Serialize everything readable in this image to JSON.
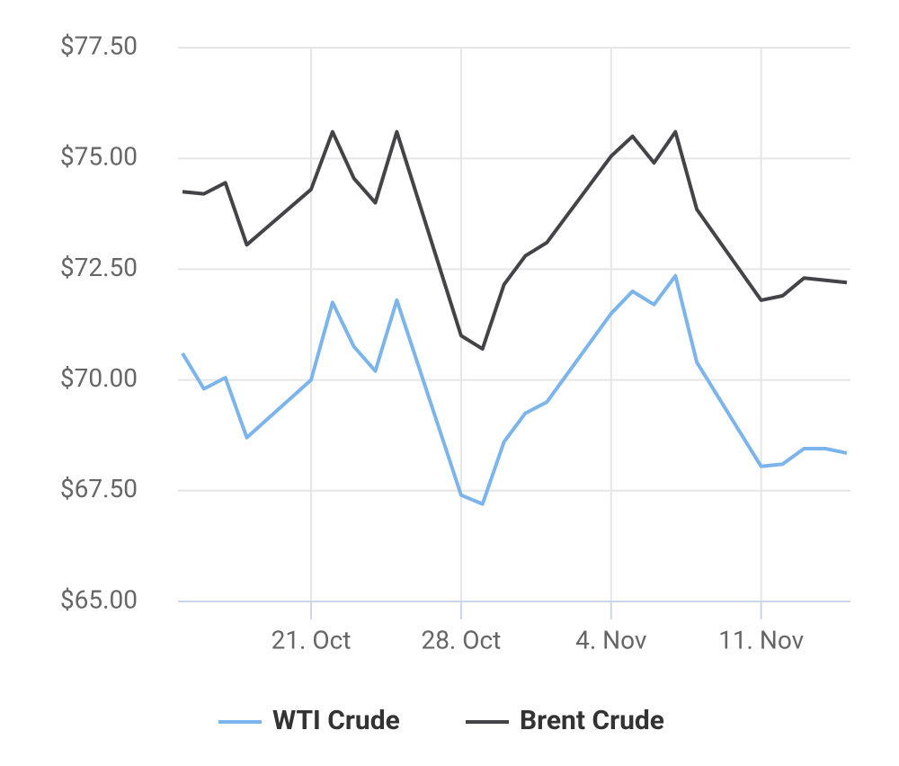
{
  "chart_data": {
    "type": "line",
    "x": [
      "10-15",
      "10-16",
      "10-17",
      "10-18",
      "10-21",
      "10-22",
      "10-23",
      "10-24",
      "10-25",
      "10-28",
      "10-29",
      "10-30",
      "10-31",
      "11-01",
      "11-04",
      "11-05",
      "11-06",
      "11-07",
      "11-08",
      "11-11",
      "11-12",
      "11-13",
      "11-14",
      "11-15"
    ],
    "series": [
      {
        "name": "WTI Crude",
        "color": "#7cb5ec",
        "values": [
          70.6,
          69.8,
          70.05,
          68.7,
          70.0,
          71.75,
          70.75,
          70.2,
          71.8,
          67.4,
          67.2,
          68.6,
          69.25,
          69.5,
          71.5,
          72.0,
          71.7,
          72.35,
          70.4,
          68.05,
          68.1,
          68.45,
          68.45,
          68.35
        ]
      },
      {
        "name": "Brent Crude",
        "color": "#434348",
        "values": [
          74.25,
          74.2,
          74.45,
          73.05,
          74.3,
          75.6,
          74.55,
          74.0,
          75.6,
          71.0,
          70.7,
          72.15,
          72.8,
          73.1,
          75.05,
          75.5,
          74.9,
          75.6,
          73.85,
          71.8,
          71.9,
          72.3,
          72.25,
          72.2
        ]
      }
    ],
    "xlim": [
      "10-15",
      "11-15"
    ],
    "xticks": [
      {
        "value": "10-21",
        "label": "21. Oct"
      },
      {
        "value": "10-28",
        "label": "28. Oct"
      },
      {
        "value": "11-04",
        "label": "4. Nov"
      },
      {
        "value": "11-11",
        "label": "11. Nov"
      }
    ],
    "ylim": [
      65,
      77.5
    ],
    "yticks": [
      {
        "value": 65,
        "label": "$65.00"
      },
      {
        "value": 67.5,
        "label": "$67.50"
      },
      {
        "value": 70,
        "label": "$70.00"
      },
      {
        "value": 72.5,
        "label": "$72.50"
      },
      {
        "value": 75,
        "label": "$75.00"
      },
      {
        "value": 77.5,
        "label": "$77.50"
      }
    ],
    "grid": true,
    "legend": "bottom"
  }
}
